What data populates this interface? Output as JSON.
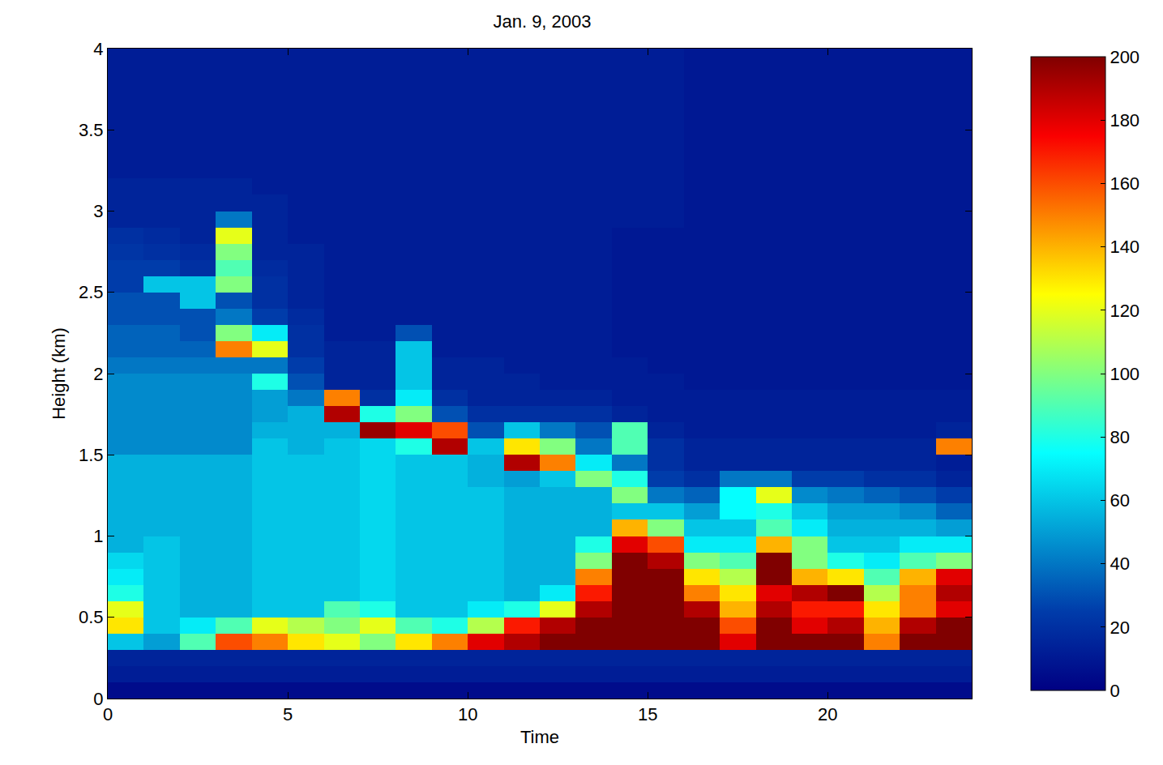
{
  "chart_data": {
    "type": "heatmap",
    "title": "Jan. 9, 2003",
    "x_label": "Time",
    "y_label": "Height (km)",
    "color": "Jet",
    "xlim": [
      0,
      24
    ],
    "xticks": [
      0,
      5,
      10,
      15,
      20
    ],
    "ylim": [
      0,
      4
    ],
    "yticks": [
      0,
      0.5,
      1,
      1.5,
      2,
      2.5,
      3,
      3.5,
      4
    ],
    "zlim": [
      0,
      200
    ],
    "zticks": [
      0,
      20,
      40,
      60,
      80,
      100,
      120,
      140,
      160,
      180,
      200
    ],
    "x": [
      0.5,
      1.5,
      2.5,
      3.5,
      4.5,
      5.5,
      6.5,
      7.5,
      8.5,
      9.5,
      10.5,
      11.5,
      12.5,
      13.5,
      14.5,
      15.5,
      16.5,
      17.5,
      18.5,
      19.5,
      20.5,
      21.5,
      22.5,
      23.5
    ],
    "y": [
      0.05,
      0.15,
      0.25,
      0.35,
      0.45,
      0.55,
      0.65,
      0.75,
      0.85,
      0.95,
      1.05,
      1.15,
      1.25,
      1.35,
      1.45,
      1.55,
      1.65,
      1.75,
      1.85,
      1.95,
      2.05,
      2.15,
      2.25,
      2.35,
      2.45,
      2.55,
      2.65,
      2.75,
      2.85,
      2.95,
      3.05,
      3.15,
      3.25,
      3.35,
      3.45,
      3.55,
      3.65,
      3.75,
      3.85,
      3.95
    ],
    "z": [
      [
        5,
        5,
        5,
        5,
        5,
        5,
        5,
        5,
        5,
        5,
        5,
        5,
        5,
        5,
        5,
        5,
        5,
        5,
        5,
        5,
        5,
        5,
        5,
        5
      ],
      [
        12,
        12,
        12,
        12,
        12,
        12,
        12,
        12,
        12,
        12,
        12,
        12,
        12,
        12,
        12,
        12,
        12,
        12,
        12,
        12,
        12,
        12,
        12,
        12
      ],
      [
        15,
        15,
        15,
        15,
        15,
        15,
        15,
        15,
        15,
        15,
        15,
        15,
        15,
        15,
        15,
        15,
        15,
        15,
        15,
        15,
        15,
        15,
        15,
        15
      ],
      [
        60,
        50,
        90,
        160,
        150,
        130,
        120,
        100,
        130,
        150,
        180,
        190,
        200,
        200,
        200,
        200,
        200,
        180,
        200,
        200,
        200,
        150,
        200,
        200
      ],
      [
        130,
        60,
        70,
        90,
        120,
        110,
        100,
        120,
        90,
        80,
        110,
        170,
        190,
        200,
        200,
        200,
        200,
        160,
        200,
        180,
        190,
        140,
        190,
        200
      ],
      [
        120,
        60,
        55,
        55,
        60,
        60,
        90,
        80,
        60,
        60,
        70,
        80,
        120,
        190,
        200,
        200,
        190,
        140,
        190,
        170,
        170,
        130,
        150,
        180
      ],
      [
        80,
        60,
        55,
        55,
        60,
        60,
        60,
        65,
        60,
        60,
        60,
        55,
        70,
        170,
        200,
        200,
        150,
        130,
        180,
        190,
        200,
        110,
        150,
        190
      ],
      [
        70,
        60,
        55,
        55,
        60,
        60,
        60,
        65,
        60,
        60,
        60,
        55,
        55,
        150,
        200,
        200,
        130,
        110,
        200,
        140,
        130,
        90,
        140,
        180
      ],
      [
        65,
        60,
        55,
        55,
        60,
        60,
        60,
        65,
        60,
        60,
        60,
        55,
        55,
        100,
        200,
        190,
        100,
        90,
        200,
        100,
        80,
        70,
        90,
        100
      ],
      [
        55,
        60,
        55,
        55,
        60,
        60,
        60,
        65,
        60,
        60,
        60,
        55,
        55,
        80,
        180,
        160,
        70,
        70,
        140,
        100,
        60,
        60,
        70,
        70
      ],
      [
        55,
        55,
        55,
        55,
        60,
        60,
        60,
        65,
        60,
        60,
        60,
        55,
        55,
        55,
        140,
        100,
        60,
        60,
        90,
        70,
        55,
        55,
        55,
        50
      ],
      [
        55,
        55,
        55,
        55,
        60,
        60,
        60,
        65,
        60,
        60,
        60,
        55,
        55,
        55,
        60,
        60,
        50,
        75,
        80,
        60,
        50,
        50,
        45,
        35
      ],
      [
        55,
        55,
        55,
        55,
        60,
        60,
        60,
        65,
        60,
        60,
        60,
        55,
        55,
        55,
        100,
        40,
        35,
        75,
        120,
        45,
        40,
        35,
        30,
        25
      ],
      [
        55,
        55,
        55,
        55,
        60,
        60,
        60,
        65,
        60,
        60,
        55,
        50,
        60,
        100,
        80,
        25,
        20,
        40,
        40,
        25,
        25,
        20,
        20,
        15
      ],
      [
        55,
        55,
        55,
        55,
        60,
        60,
        60,
        65,
        60,
        60,
        55,
        190,
        150,
        70,
        40,
        20,
        15,
        15,
        15,
        15,
        15,
        15,
        15,
        12
      ],
      [
        45,
        45,
        45,
        45,
        60,
        55,
        60,
        65,
        80,
        190,
        60,
        130,
        100,
        40,
        90,
        20,
        15,
        15,
        15,
        15,
        15,
        15,
        15,
        150
      ],
      [
        45,
        45,
        45,
        45,
        55,
        55,
        55,
        195,
        180,
        160,
        30,
        60,
        40,
        30,
        90,
        15,
        12,
        12,
        12,
        12,
        12,
        12,
        12,
        15
      ],
      [
        45,
        45,
        45,
        45,
        50,
        55,
        190,
        80,
        100,
        30,
        20,
        20,
        20,
        20,
        15,
        12,
        12,
        12,
        12,
        12,
        12,
        12,
        12,
        12
      ],
      [
        45,
        45,
        45,
        45,
        50,
        40,
        150,
        20,
        70,
        20,
        15,
        15,
        15,
        15,
        12,
        12,
        12,
        12,
        12,
        12,
        12,
        12,
        12,
        12
      ],
      [
        45,
        45,
        45,
        45,
        80,
        30,
        15,
        15,
        60,
        15,
        15,
        15,
        12,
        12,
        12,
        12,
        10,
        10,
        10,
        10,
        10,
        10,
        10,
        10
      ],
      [
        40,
        40,
        40,
        40,
        40,
        25,
        15,
        15,
        60,
        15,
        15,
        12,
        12,
        12,
        12,
        10,
        10,
        10,
        10,
        10,
        10,
        10,
        10,
        10
      ],
      [
        35,
        35,
        35,
        150,
        120,
        20,
        15,
        15,
        60,
        12,
        12,
        12,
        12,
        12,
        10,
        10,
        10,
        10,
        10,
        10,
        10,
        10,
        10,
        10
      ],
      [
        35,
        35,
        30,
        100,
        70,
        20,
        12,
        12,
        30,
        12,
        12,
        12,
        12,
        12,
        10,
        10,
        10,
        10,
        10,
        10,
        10,
        10,
        10,
        10
      ],
      [
        30,
        30,
        30,
        40,
        25,
        18,
        12,
        12,
        12,
        12,
        12,
        12,
        12,
        12,
        10,
        10,
        10,
        10,
        10,
        10,
        10,
        10,
        10,
        10
      ],
      [
        30,
        30,
        60,
        30,
        20,
        15,
        12,
        12,
        12,
        12,
        12,
        12,
        12,
        12,
        10,
        10,
        10,
        10,
        10,
        10,
        10,
        10,
        10,
        10
      ],
      [
        25,
        60,
        60,
        100,
        20,
        15,
        12,
        12,
        12,
        12,
        12,
        12,
        12,
        12,
        10,
        10,
        10,
        10,
        10,
        10,
        10,
        10,
        10,
        10
      ],
      [
        25,
        25,
        20,
        90,
        18,
        15,
        12,
        12,
        12,
        12,
        12,
        12,
        12,
        12,
        10,
        10,
        10,
        10,
        10,
        10,
        10,
        10,
        10,
        10
      ],
      [
        22,
        20,
        18,
        100,
        15,
        15,
        12,
        12,
        12,
        12,
        12,
        12,
        12,
        12,
        10,
        10,
        10,
        10,
        10,
        10,
        10,
        10,
        10,
        10
      ],
      [
        20,
        18,
        15,
        120,
        15,
        12,
        12,
        12,
        12,
        12,
        12,
        12,
        12,
        12,
        10,
        10,
        10,
        10,
        10,
        10,
        10,
        10,
        10,
        10
      ],
      [
        15,
        15,
        15,
        40,
        15,
        12,
        12,
        12,
        12,
        12,
        12,
        12,
        12,
        12,
        12,
        12,
        10,
        10,
        10,
        10,
        10,
        10,
        10,
        10
      ],
      [
        15,
        15,
        15,
        15,
        15,
        12,
        12,
        12,
        12,
        12,
        12,
        12,
        12,
        12,
        12,
        12,
        10,
        10,
        10,
        10,
        10,
        10,
        10,
        10
      ],
      [
        15,
        15,
        15,
        15,
        12,
        12,
        12,
        12,
        12,
        12,
        12,
        12,
        12,
        12,
        12,
        12,
        10,
        10,
        10,
        10,
        10,
        10,
        10,
        10
      ],
      [
        12,
        12,
        12,
        12,
        12,
        12,
        12,
        12,
        12,
        12,
        12,
        12,
        12,
        12,
        12,
        12,
        10,
        10,
        10,
        10,
        10,
        10,
        10,
        10
      ],
      [
        12,
        12,
        12,
        12,
        12,
        12,
        12,
        12,
        12,
        12,
        12,
        12,
        12,
        12,
        12,
        12,
        10,
        10,
        10,
        10,
        10,
        10,
        10,
        10
      ],
      [
        12,
        12,
        12,
        12,
        12,
        12,
        12,
        12,
        12,
        12,
        12,
        12,
        12,
        12,
        12,
        12,
        10,
        10,
        10,
        10,
        10,
        10,
        10,
        10
      ],
      [
        12,
        12,
        12,
        12,
        12,
        12,
        12,
        12,
        12,
        12,
        12,
        12,
        12,
        12,
        12,
        12,
        10,
        10,
        10,
        10,
        10,
        10,
        10,
        10
      ],
      [
        12,
        12,
        12,
        12,
        12,
        12,
        12,
        12,
        12,
        12,
        12,
        12,
        12,
        12,
        12,
        12,
        10,
        10,
        10,
        10,
        10,
        10,
        10,
        10
      ],
      [
        12,
        12,
        12,
        12,
        12,
        12,
        12,
        12,
        12,
        12,
        12,
        12,
        12,
        12,
        12,
        12,
        10,
        10,
        10,
        10,
        10,
        10,
        10,
        10
      ],
      [
        12,
        12,
        12,
        12,
        12,
        12,
        12,
        12,
        12,
        12,
        12,
        12,
        12,
        12,
        12,
        12,
        10,
        10,
        10,
        10,
        10,
        10,
        10,
        10
      ],
      [
        12,
        12,
        12,
        12,
        12,
        12,
        12,
        12,
        12,
        12,
        12,
        12,
        12,
        12,
        12,
        12,
        10,
        10,
        10,
        10,
        10,
        10,
        10,
        10
      ]
    ]
  }
}
